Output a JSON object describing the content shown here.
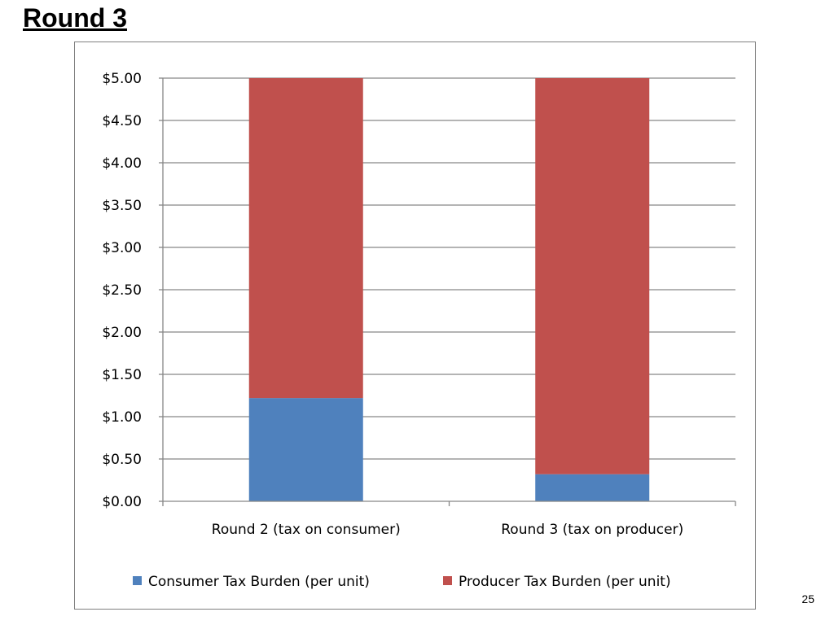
{
  "slide": {
    "title": "Round 3",
    "page_number": "25"
  },
  "colors": {
    "consumer": "#4f81bd",
    "producer": "#c0504d",
    "grid": "#868686",
    "axis": "#868686"
  },
  "chart_data": {
    "type": "bar",
    "stacked": true,
    "title": "",
    "xlabel": "",
    "ylabel": "",
    "categories": [
      "Round 2 (tax on consumer)",
      "Round 3 (tax on producer)"
    ],
    "series": [
      {
        "name": "Consumer Tax Burden (per unit)",
        "values": [
          1.22,
          0.32
        ]
      },
      {
        "name": "Producer Tax Burden (per unit)",
        "values": [
          3.78,
          4.68
        ]
      }
    ],
    "ylim": [
      0,
      5
    ],
    "ytick_step": 0.5,
    "ytick_labels": [
      "$0.00",
      "$0.50",
      "$1.00",
      "$1.50",
      "$2.00",
      "$2.50",
      "$3.00",
      "$3.50",
      "$4.00",
      "$4.50",
      "$5.00"
    ],
    "grid": true,
    "legend_position": "bottom"
  }
}
